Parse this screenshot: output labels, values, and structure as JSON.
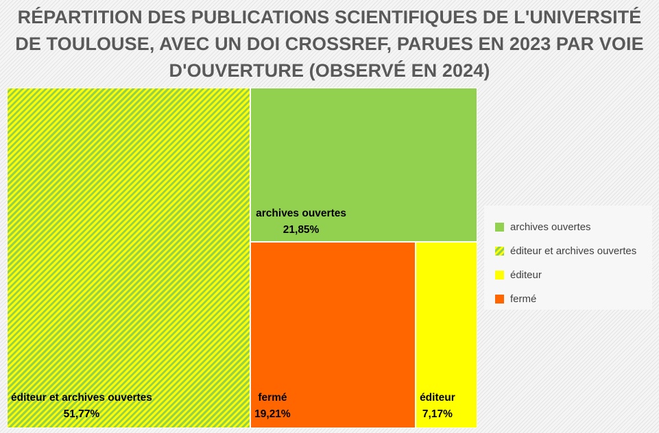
{
  "chart_data": {
    "type": "treemap",
    "title": "RÉPARTITION DES PUBLICATIONS SCIENTIFIQUES DE L'UNIVERSITÉ DE TOULOUSE, AVEC UN DOI CROSSREF, PARUES EN 2023 PAR VOIE D'OUVERTURE (OBSERVÉ EN 2024)",
    "title_lines": [
      "RÉPARTITION DES PUBLICATIONS SCIENTIFIQUES DE L'UNIVERSITÉ",
      "DE TOULOUSE, AVEC UN DOI CROSSREF, PARUES EN 2023 PAR VOIE",
      "D'OUVERTURE (OBSERVÉ EN 2024)"
    ],
    "categories": [
      "éditeur et archives ouvertes",
      "archives ouvertes",
      "fermé",
      "éditeur"
    ],
    "values": [
      51.77,
      21.85,
      19.21,
      7.17
    ],
    "value_labels": [
      "51,77%",
      "21,85%",
      "19,21%",
      "7,17%"
    ],
    "colors": {
      "archives ouvertes": "#92d050",
      "éditeur et archives ouvertes": "hatch #92d050 on #ffff00",
      "éditeur": "#ffff00",
      "fermé": "#ff6600"
    },
    "legend": {
      "position": "right",
      "items": [
        "archives ouvertes",
        "éditeur et archives ouvertes",
        "éditeur",
        "fermé"
      ]
    }
  }
}
